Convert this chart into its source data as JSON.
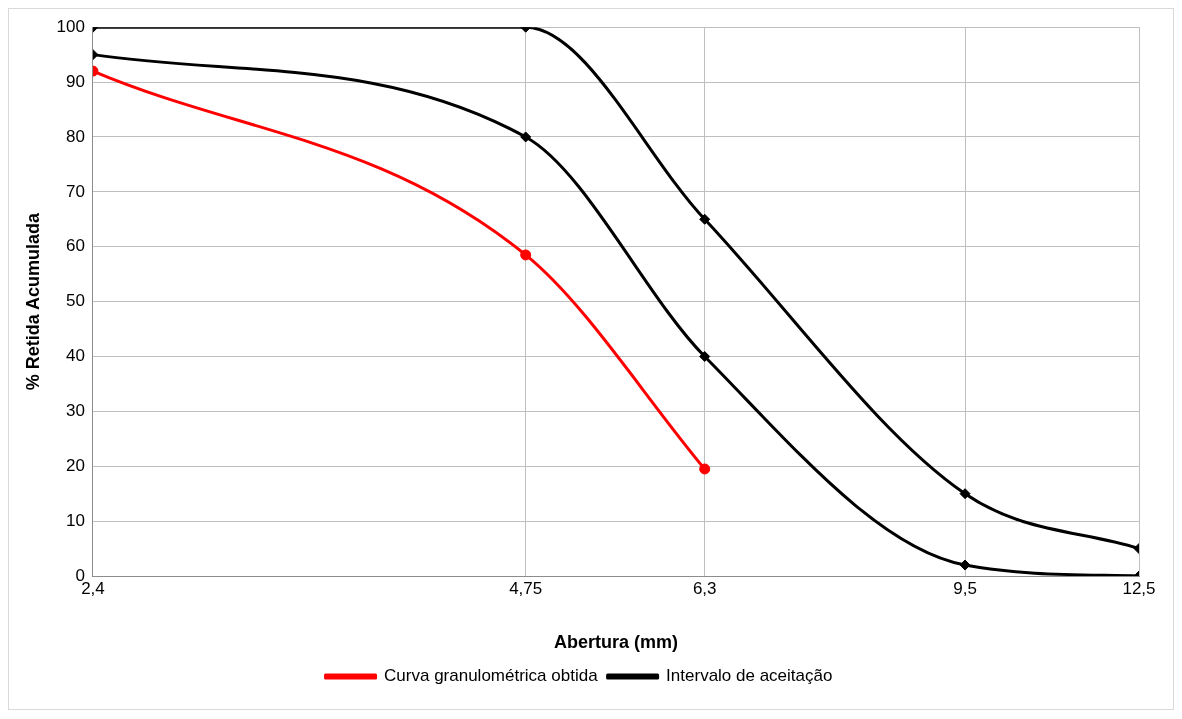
{
  "chart_data": {
    "type": "line",
    "xlabel": "Abertura (mm)",
    "ylabel": "% Retida Acumulada",
    "log": "x",
    "xlim": [
      2.4,
      12.5
    ],
    "xticks": [
      {
        "value": 2.4,
        "label": "2,4"
      },
      {
        "value": 4.75,
        "label": "4,75"
      },
      {
        "value": 6.3,
        "label": "6,3"
      },
      {
        "value": 9.5,
        "label": "9,5"
      },
      {
        "value": 12.5,
        "label": "12,5"
      }
    ],
    "ylim": [
      0,
      100
    ],
    "yticks": [
      0,
      10,
      20,
      30,
      40,
      50,
      60,
      70,
      80,
      90,
      100
    ],
    "grid": true,
    "legend": "bottom",
    "series": [
      {
        "name": "Curva granulométrica obtida",
        "color": "#ff0000",
        "marker": "circle",
        "x": [
          2.4,
          4.75,
          6.3
        ],
        "values": [
          92,
          58.5,
          19.5
        ]
      },
      {
        "name": "Intervalo de aceitação",
        "color": "#000000",
        "marker": "diamond",
        "x": [
          2.4,
          4.75,
          6.3,
          9.5,
          12.5
        ],
        "values": [
          100,
          100,
          65,
          15,
          5
        ]
      },
      {
        "color": "#000000",
        "marker": "diamond",
        "x": [
          2.4,
          4.75,
          6.3,
          9.5,
          12.5
        ],
        "values": [
          95,
          80,
          40,
          2,
          0
        ]
      }
    ]
  }
}
